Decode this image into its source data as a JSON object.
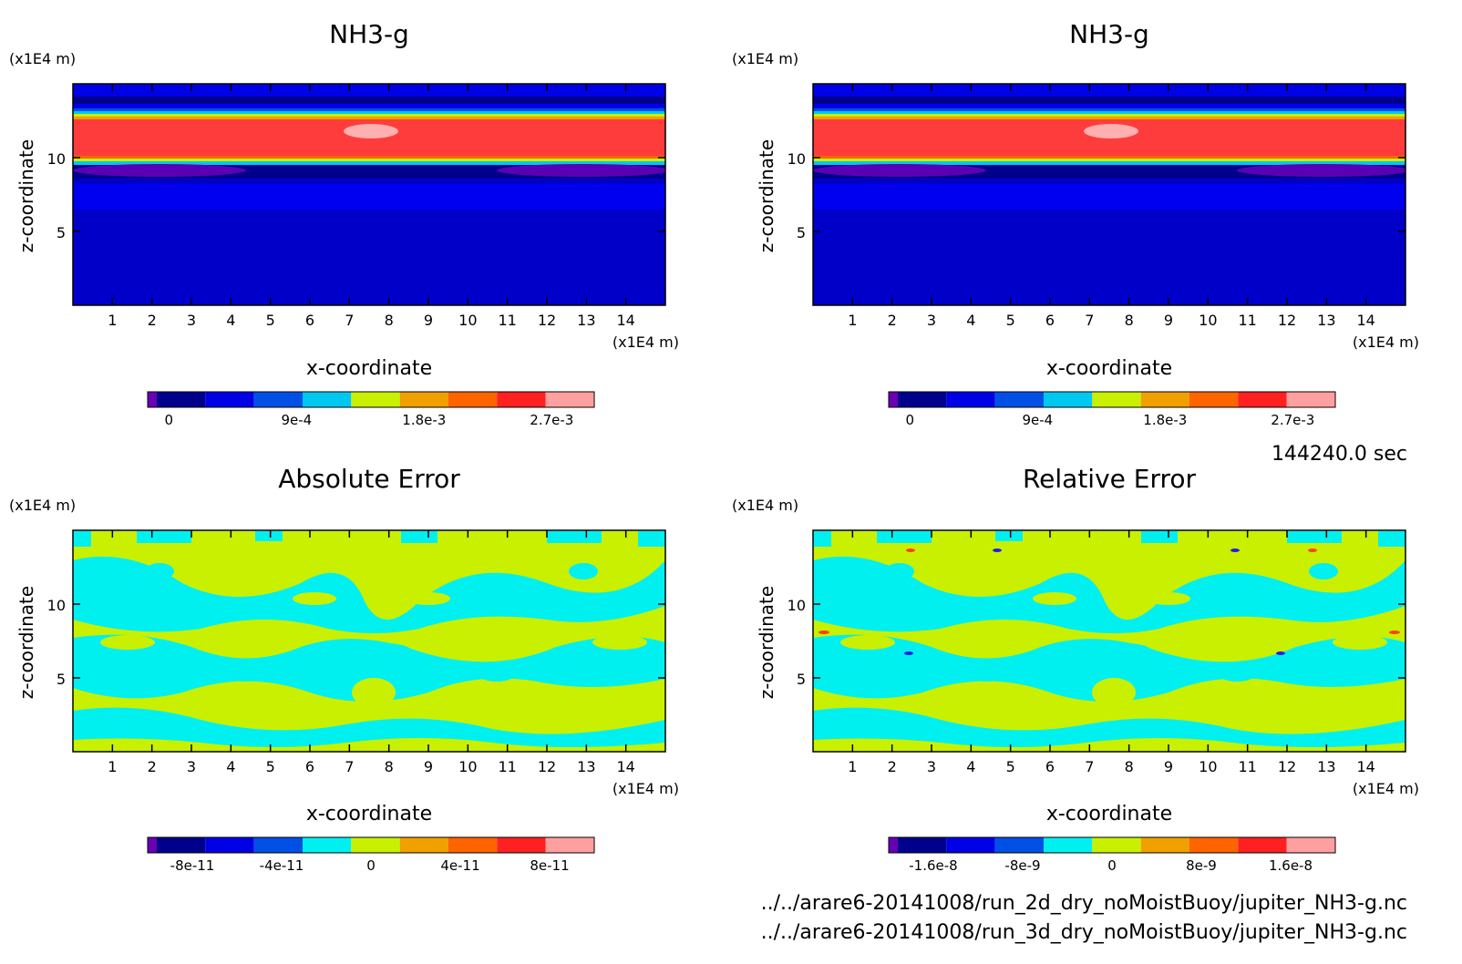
{
  "chart_data": [
    {
      "type": "heatmap",
      "title": "NH3-g",
      "xlabel": "x-coordinate",
      "ylabel": "z-coordinate",
      "x_unit": "(x1E4 m)",
      "y_unit": "(x1E4 m)",
      "xticks": [
        "1",
        "2",
        "3",
        "4",
        "5",
        "6",
        "7",
        "8",
        "9",
        "10",
        "11",
        "12",
        "13",
        "14"
      ],
      "yticks": [
        "5",
        "10"
      ],
      "xlim": [
        0,
        15
      ],
      "ylim": [
        0,
        15
      ],
      "colorbar": {
        "colors": [
          "#6a00b4",
          "#00008c",
          "#0000e6",
          "#0050e6",
          "#00c8f0",
          "#c8f000",
          "#f0a000",
          "#ff6400",
          "#ff2020",
          "#ffa0a0"
        ],
        "ticks": [
          "0",
          "9e-4",
          "1.8e-3",
          "2.7e-3"
        ],
        "tick_values": [
          0,
          0.0009,
          0.0018,
          0.0027
        ],
        "range": [
          -0.00015,
          0.003
        ]
      }
    },
    {
      "type": "heatmap",
      "title": "NH3-g",
      "xlabel": "x-coordinate",
      "ylabel": "z-coordinate",
      "x_unit": "(x1E4 m)",
      "y_unit": "(x1E4 m)",
      "xticks": [
        "1",
        "2",
        "3",
        "4",
        "5",
        "6",
        "7",
        "8",
        "9",
        "10",
        "11",
        "12",
        "13",
        "14"
      ],
      "yticks": [
        "5",
        "10"
      ],
      "xlim": [
        0,
        15
      ],
      "ylim": [
        0,
        15
      ],
      "colorbar": {
        "colors": [
          "#6a00b4",
          "#00008c",
          "#0000e6",
          "#0050e6",
          "#00c8f0",
          "#c8f000",
          "#f0a000",
          "#ff6400",
          "#ff2020",
          "#ffa0a0"
        ],
        "ticks": [
          "0",
          "9e-4",
          "1.8e-3",
          "2.7e-3"
        ],
        "tick_values": [
          0,
          0.0009,
          0.0018,
          0.0027
        ],
        "range": [
          -0.00015,
          0.003
        ]
      }
    },
    {
      "type": "heatmap",
      "title": "Absolute Error",
      "xlabel": "x-coordinate",
      "ylabel": "z-coordinate",
      "x_unit": "(x1E4 m)",
      "y_unit": "(x1E4 m)",
      "xticks": [
        "1",
        "2",
        "3",
        "4",
        "5",
        "6",
        "7",
        "8",
        "9",
        "10",
        "11",
        "12",
        "13",
        "14"
      ],
      "yticks": [
        "5",
        "10"
      ],
      "xlim": [
        0,
        15
      ],
      "ylim": [
        0,
        15
      ],
      "colorbar": {
        "colors": [
          "#6a00b4",
          "#00008c",
          "#0000e6",
          "#0050e6",
          "#00f0f0",
          "#c8f000",
          "#f0a000",
          "#ff6400",
          "#ff2020",
          "#ffa0a0"
        ],
        "ticks": [
          "-8e-11",
          "-4e-11",
          "0",
          "4e-11",
          "8e-11"
        ],
        "tick_values": [
          -8e-11,
          -4e-11,
          0,
          4e-11,
          8e-11
        ],
        "range": [
          -1e-10,
          1e-10
        ]
      }
    },
    {
      "type": "heatmap",
      "title": "Relative Error",
      "xlabel": "x-coordinate",
      "ylabel": "z-coordinate",
      "x_unit": "(x1E4 m)",
      "y_unit": "(x1E4 m)",
      "xticks": [
        "1",
        "2",
        "3",
        "4",
        "5",
        "6",
        "7",
        "8",
        "9",
        "10",
        "11",
        "12",
        "13",
        "14"
      ],
      "yticks": [
        "5",
        "10"
      ],
      "xlim": [
        0,
        15
      ],
      "ylim": [
        0,
        15
      ],
      "colorbar": {
        "colors": [
          "#6a00b4",
          "#00008c",
          "#0000e6",
          "#0050e6",
          "#00f0f0",
          "#c8f000",
          "#f0a000",
          "#ff6400",
          "#ff2020",
          "#ffa0a0"
        ],
        "ticks": [
          "-1.6e-8",
          "-8e-9",
          "0",
          "8e-9",
          "1.6e-8"
        ],
        "tick_values": [
          -1.6e-08,
          -8e-09,
          0,
          8e-09,
          1.6e-08
        ],
        "range": [
          -2e-08,
          2e-08
        ]
      }
    }
  ],
  "footer": {
    "time": "144240.0 sec",
    "file1": "../../arare6-20141008/run_2d_dry_noMoistBuoy/jupiter_NH3-g.nc",
    "file2": "../../arare6-20141008/run_3d_dry_noMoistBuoy/jupiter_NH3-g.nc"
  }
}
